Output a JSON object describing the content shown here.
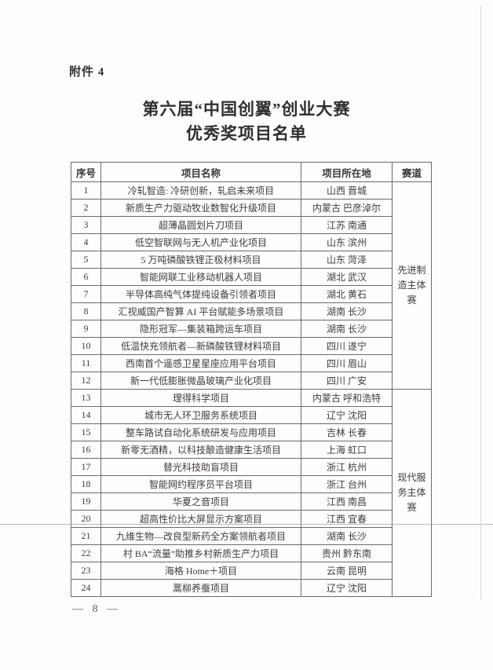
{
  "page": {
    "attachment_label": "附件 4",
    "title_line1": "第六届“中国创翼”创业大赛",
    "title_line2": "优秀奖项目名单",
    "page_number": "— 8 —"
  },
  "colors": {
    "background": "#fdfdfc",
    "text": "#3a3a3a",
    "table_border": "#6e6a66"
  },
  "table": {
    "headers": [
      "序号",
      "项目名称",
      "项目所在地",
      "赛道"
    ],
    "tracks": [
      {
        "label": "先进制造主体赛",
        "row_span": 12
      },
      {
        "label": "现代服务主体赛",
        "row_span": 12
      }
    ],
    "rows": [
      {
        "no": "1",
        "name": "冷轧智造: 冷研创新，轧启未来项目",
        "location": "山西 晋城"
      },
      {
        "no": "2",
        "name": "新质生产力驱动牧业数智化升级项目",
        "location": "内蒙古 巴彦淖尔"
      },
      {
        "no": "3",
        "name": "超薄晶圆划片刀项目",
        "location": "江苏 南通"
      },
      {
        "no": "4",
        "name": "低空智联网与无人机产业化项目",
        "location": "山东 滨州"
      },
      {
        "no": "5",
        "name": "5 万吨磷酸铁锂正极材料项目",
        "location": "山东 菏泽"
      },
      {
        "no": "6",
        "name": "智能网联工业移动机器人项目",
        "location": "湖北 武汉"
      },
      {
        "no": "7",
        "name": "半导体高纯气体提纯设备引领者项目",
        "location": "湖北 黄石"
      },
      {
        "no": "8",
        "name": "汇视威国产智算 AI 平台赋能多场景项目",
        "location": "湖南 长沙"
      },
      {
        "no": "9",
        "name": "隐形冠军—集装箱跨运车项目",
        "location": "湖南 长沙"
      },
      {
        "no": "10",
        "name": "低温快充领航者—新磷酸铁锂材料项目",
        "location": "四川 遂宁"
      },
      {
        "no": "11",
        "name": "西南首个遥感卫星星座应用平台项目",
        "location": "四川 眉山"
      },
      {
        "no": "12",
        "name": "新一代低膨胀微晶玻璃产业化项目",
        "location": "四川 广安"
      },
      {
        "no": "13",
        "name": "理得科学项目",
        "location": "内蒙古 呼和浩特"
      },
      {
        "no": "14",
        "name": "城市无人环卫服务系统项目",
        "location": "辽宁 沈阳"
      },
      {
        "no": "15",
        "name": "整车路试自动化系统研发与应用项目",
        "location": "吉林 长春"
      },
      {
        "no": "16",
        "name": "新零无酒精，以科技酿造健康生活项目",
        "location": "上海 虹口"
      },
      {
        "no": "17",
        "name": "替光科技助盲项目",
        "location": "浙江 杭州"
      },
      {
        "no": "18",
        "name": "智能网约程序员平台项目",
        "location": "浙江 台州"
      },
      {
        "no": "19",
        "name": "华夏之音项目",
        "location": "江西 南昌"
      },
      {
        "no": "20",
        "name": "超高性价比大屏显示方案项目",
        "location": "江西 宜春"
      },
      {
        "no": "21",
        "name": "九维生物—改良型新药全方案领航者项目",
        "location": "湖南 长沙"
      },
      {
        "no": "22",
        "name": "村 BA“流量”助推乡村新质生产力项目",
        "location": "贵州 黔东南"
      },
      {
        "no": "23",
        "name": "海格 Home＋项目",
        "location": "云南 昆明"
      },
      {
        "no": "24",
        "name": "蒿柳养蚕项目",
        "location": "辽宁 沈阳"
      }
    ]
  }
}
